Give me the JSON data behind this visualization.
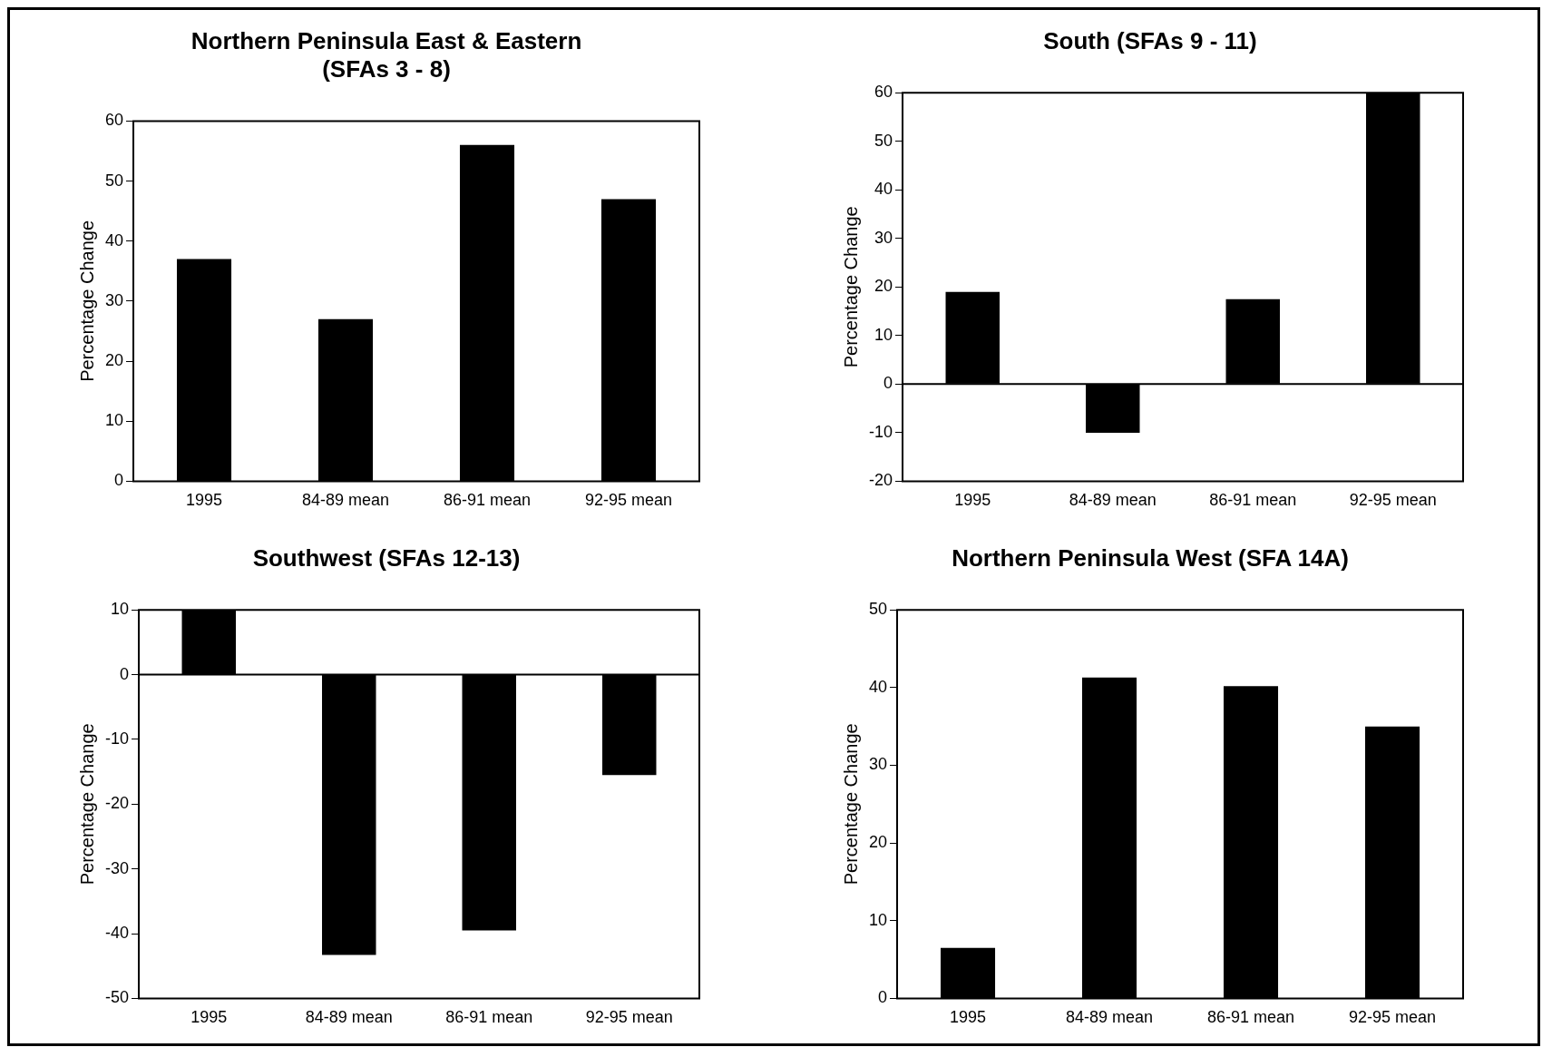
{
  "chart_data": [
    {
      "type": "bar",
      "title": "Northern Peninsula East & Eastern\n(SFAs 3 - 8)",
      "ylabel": "Percentage Change",
      "categories": [
        "1995",
        "84-89 mean",
        "86-91 mean",
        "92-95 mean"
      ],
      "values": [
        37,
        27,
        56,
        47
      ],
      "color": "#000000",
      "ylim": [
        0,
        60
      ],
      "yticks": [
        0,
        10,
        20,
        30,
        40,
        50,
        60
      ],
      "grid": false,
      "legend": false
    },
    {
      "type": "bar",
      "title": "South (SFAs 9 - 11)",
      "ylabel": "Percentage Change",
      "categories": [
        "1995",
        "84-89 mean",
        "86-91 mean",
        "92-95 mean"
      ],
      "values": [
        19,
        -10,
        17.5,
        60
      ],
      "color": "#000000",
      "ref_lines": [
        {
          "axis": "y",
          "value": 0,
          "color": "#000000"
        }
      ],
      "ylim": [
        -20,
        60
      ],
      "yticks": [
        -20,
        -10,
        0,
        10,
        20,
        30,
        40,
        50,
        60
      ],
      "grid": false,
      "legend": false
    },
    {
      "type": "bar",
      "title": "Southwest (SFAs 12-13)",
      "ylabel": "Percentage Change",
      "categories": [
        "1995",
        "84-89 mean",
        "86-91 mean",
        "92-95 mean"
      ],
      "values": [
        10,
        -43.3,
        -39.5,
        -15.5
      ],
      "color": "#000000",
      "ref_lines": [
        {
          "axis": "y",
          "value": 0,
          "color": "#000000"
        }
      ],
      "ylim": [
        -50,
        10
      ],
      "yticks": [
        -50,
        -40,
        -30,
        -20,
        -10,
        0,
        10
      ],
      "grid": false,
      "legend": false
    },
    {
      "type": "bar",
      "title": "Northern Peninsula West (SFA 14A)",
      "ylabel": "Percentage Change",
      "categories": [
        "1995",
        "84-89 mean",
        "86-91 mean",
        "92-95 mean"
      ],
      "values": [
        6.5,
        41.3,
        40.2,
        35
      ],
      "color": "#000000",
      "ylim": [
        0,
        50
      ],
      "yticks": [
        0,
        10,
        20,
        30,
        40,
        50
      ],
      "grid": false,
      "legend": false
    }
  ]
}
